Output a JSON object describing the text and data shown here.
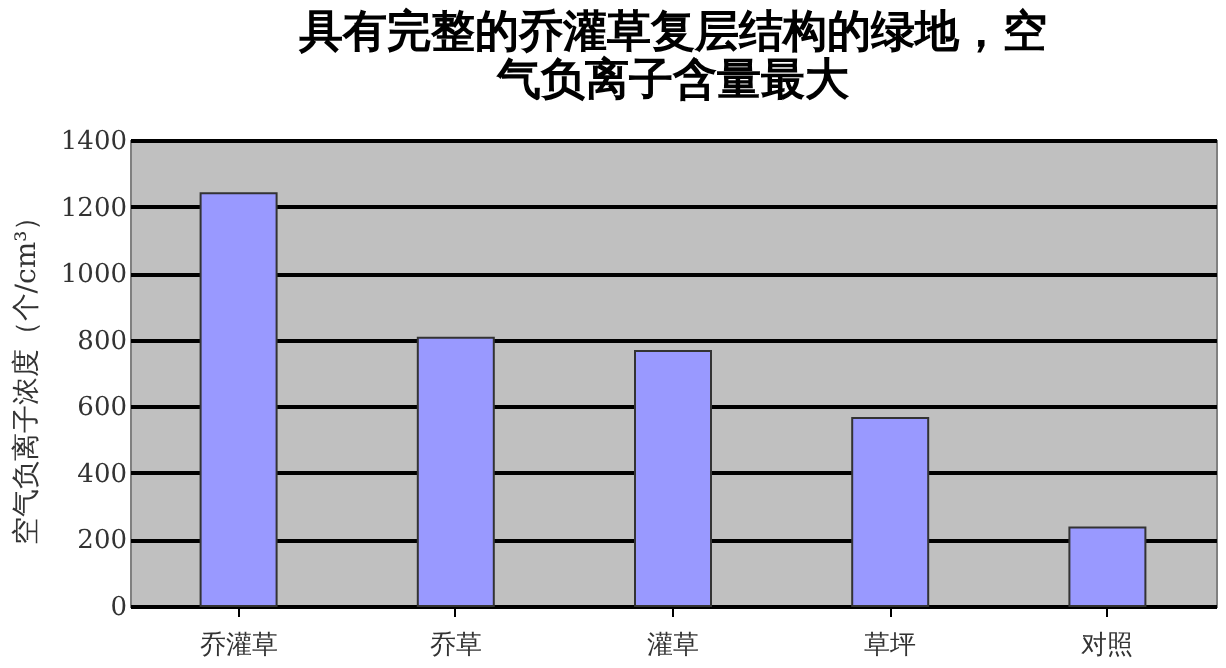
{
  "chart_data": {
    "type": "bar",
    "title": [
      "具有完整的乔灌草复层结构的绿地，空",
      "气负离子含量最大"
    ],
    "ylabel": "空气负离子浓度（个/cm³）",
    "categories": [
      "乔灌草",
      "乔草",
      "灌草",
      "草坪",
      "对照"
    ],
    "values": [
      1240,
      806,
      766,
      565,
      236
    ],
    "color": "#9999ff",
    "ylim": [
      0,
      1400
    ],
    "yticks": [
      0,
      200,
      400,
      600,
      800,
      1000,
      1200,
      1400
    ],
    "grid": "y"
  }
}
